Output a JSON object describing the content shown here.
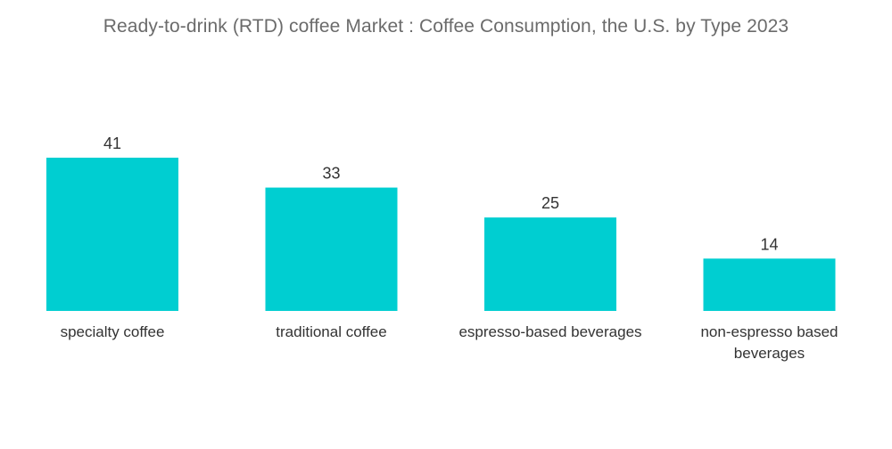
{
  "chart_data": {
    "type": "bar",
    "title": "Ready-to-drink (RTD) coffee Market : Coffee Consumption, the U.S. by Type 2023",
    "categories": [
      "specialty coffee",
      "traditional coffee",
      "espresso-based beverages",
      "non-espresso based beverages"
    ],
    "category_lines": [
      [
        "specialty coffee"
      ],
      [
        "traditional coffee"
      ],
      [
        "espresso-based beverages"
      ],
      [
        "non-espresso based",
        "beverages"
      ]
    ],
    "values": [
      41,
      33,
      25,
      14
    ],
    "xlabel": "",
    "ylabel": "",
    "ylim": [
      0,
      41
    ],
    "grid": false,
    "legend": "none",
    "bar_color": "#00CED1"
  }
}
